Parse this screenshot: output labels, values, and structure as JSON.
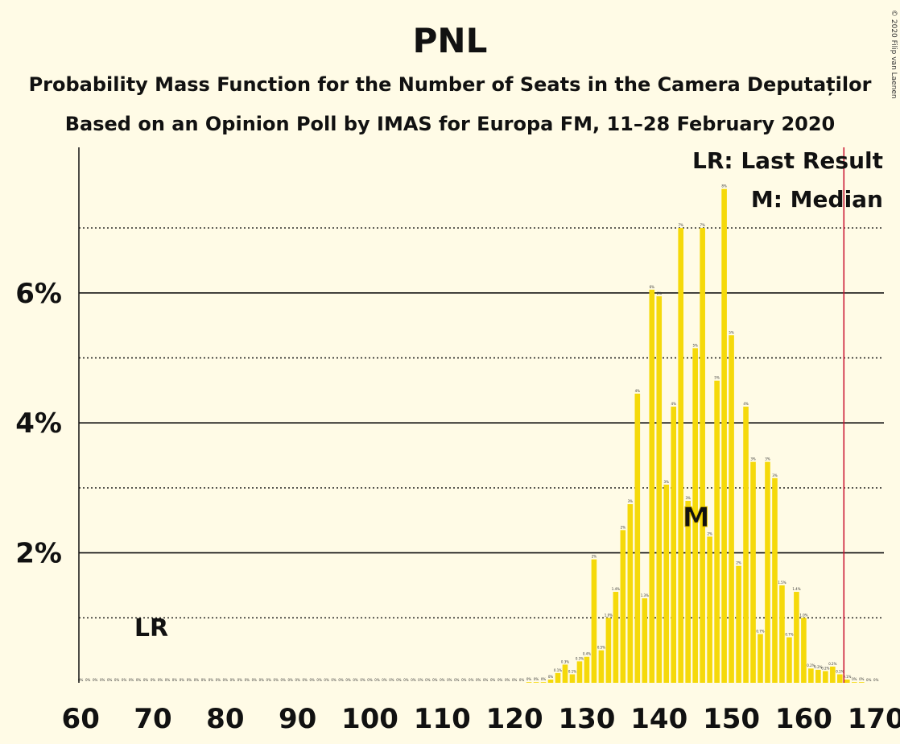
{
  "chart_data": {
    "type": "bar",
    "title": "PNL",
    "subtitle_1": "Probability Mass Function for the Number of Seats in the Camera Deputaților",
    "subtitle_2": "Based on an Opinion Poll by IMAS for Europa FM, 11–28 February 2020",
    "copyright": "© 2020 Filip van Laenen",
    "legend": {
      "lr": "LR: Last Result",
      "median": "M: Median",
      "placement": "top-right"
    },
    "x_ticks": [
      "60",
      "70",
      "80",
      "90",
      "100",
      "110",
      "120",
      "130",
      "140",
      "150",
      "160",
      "170"
    ],
    "y_ticks": [
      "2%",
      "4%",
      "6%"
    ],
    "xlim": [
      60,
      170
    ],
    "ylim": [
      0,
      8.2
    ],
    "grid_solid": [
      2,
      4,
      6
    ],
    "grid_dotted": [
      1,
      3,
      5,
      7
    ],
    "last_result": {
      "seats": 69,
      "label": "LR"
    },
    "median": {
      "seats": 145,
      "label": "M"
    },
    "threshold_line": {
      "seats": 166,
      "color": "#c8102e"
    },
    "colors": {
      "bar": "#f5d90a",
      "background": "#fffbe6"
    },
    "seats": [
      60,
      61,
      62,
      63,
      64,
      65,
      66,
      67,
      68,
      69,
      70,
      71,
      72,
      73,
      74,
      75,
      76,
      77,
      78,
      79,
      80,
      81,
      82,
      83,
      84,
      85,
      86,
      87,
      88,
      89,
      90,
      91,
      92,
      93,
      94,
      95,
      96,
      97,
      98,
      99,
      100,
      101,
      102,
      103,
      104,
      105,
      106,
      107,
      108,
      109,
      110,
      111,
      112,
      113,
      114,
      115,
      116,
      117,
      118,
      119,
      120,
      121,
      122,
      123,
      124,
      125,
      126,
      127,
      128,
      129,
      130,
      131,
      132,
      133,
      134,
      135,
      136,
      137,
      138,
      139,
      140,
      141,
      142,
      143,
      144,
      145,
      146,
      147,
      148,
      149,
      150,
      151,
      152,
      153,
      154,
      155,
      156,
      157,
      158,
      159,
      160,
      161,
      162,
      163,
      164,
      165,
      166,
      167,
      168,
      169,
      170
    ],
    "values": [
      0,
      0,
      0,
      0,
      0,
      0,
      0,
      0,
      0,
      0,
      0,
      0,
      0,
      0,
      0,
      0,
      0,
      0,
      0,
      0,
      0,
      0,
      0,
      0,
      0,
      0,
      0,
      0,
      0,
      0,
      0,
      0,
      0,
      0,
      0,
      0,
      0,
      0,
      0,
      0,
      0,
      0,
      0,
      0,
      0,
      0,
      0,
      0,
      0,
      0,
      0,
      0,
      0,
      0,
      0,
      0,
      0,
      0,
      0,
      0,
      0,
      0,
      0.01,
      0.01,
      0.01,
      0.05,
      0.15,
      0.28,
      0.13,
      0.33,
      0.4,
      1.9,
      0.5,
      1.0,
      1.4,
      2.35,
      2.75,
      4.45,
      1.3,
      6.05,
      5.95,
      3.05,
      4.25,
      7.0,
      2.8,
      5.15,
      7.0,
      2.25,
      4.65,
      7.6,
      5.35,
      1.8,
      4.25,
      3.4,
      0.75,
      3.4,
      3.15,
      1.5,
      0.7,
      1.4,
      1.0,
      0.22,
      0.2,
      0.18,
      0.25,
      0.13,
      0.05,
      0.01,
      0.01,
      0,
      0
    ],
    "value_labels": [
      "0%",
      "0%",
      "0%",
      "0%",
      "0%",
      "0%",
      "0%",
      "0%",
      "0%",
      "0%",
      "0%",
      "0%",
      "0%",
      "0%",
      "0%",
      "0%",
      "0%",
      "0%",
      "0%",
      "0%",
      "0%",
      "0%",
      "0%",
      "0%",
      "0%",
      "0%",
      "0%",
      "0%",
      "0%",
      "0%",
      "0%",
      "0%",
      "0%",
      "0%",
      "0%",
      "0%",
      "0%",
      "0%",
      "0%",
      "0%",
      "0%",
      "0%",
      "0%",
      "0%",
      "0%",
      "0%",
      "0%",
      "0%",
      "0%",
      "0%",
      "0%",
      "0%",
      "0%",
      "0%",
      "0%",
      "0%",
      "0%",
      "0%",
      "0%",
      "0%",
      "0%",
      "0%",
      "0%",
      "0%",
      "0%",
      "0%",
      "0.1%",
      "0.3%",
      "0.1%",
      "0.3%",
      "0.4%",
      "2%",
      "0.5%",
      "1.0%",
      "1.4%",
      "2%",
      "3%",
      "4%",
      "1.3%",
      "6%",
      "6%",
      "3%",
      "4%",
      "7%",
      "3%",
      "5%",
      "7%",
      "2%",
      "5%",
      "8%",
      "5%",
      "2%",
      "4%",
      "3%",
      "0.7%",
      "3%",
      "3%",
      "1.5%",
      "0.7%",
      "1.4%",
      "1.0%",
      "0.2%",
      "0.2%",
      "0.2%",
      "0.2%",
      "0.1%",
      "0.1%",
      "0%",
      "0%",
      "0%",
      "0%"
    ]
  }
}
